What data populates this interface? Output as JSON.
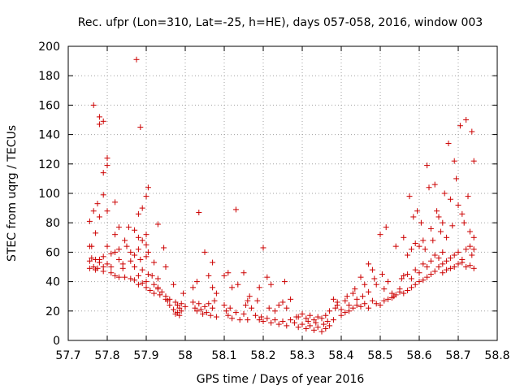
{
  "chart_data": {
    "type": "scatter",
    "title": "Rec. ufpr (Lon=310, Lat=-25, h=HE), days 057-058, 2016, window 003",
    "xlabel": "GPS time / Days of year 2016",
    "ylabel": "STEC from uqrg / TECUs",
    "xlim": [
      57.7,
      58.8
    ],
    "ylim": [
      0,
      200
    ],
    "xticks": [
      "57.7",
      "57.8",
      "57.9",
      "58",
      "58.1",
      "58.2",
      "58.3",
      "58.4",
      "58.5",
      "58.6",
      "58.7",
      "58.8"
    ],
    "xtick_values": [
      57.7,
      57.8,
      57.9,
      58.0,
      58.1,
      58.2,
      58.3,
      58.4,
      58.5,
      58.6,
      58.7,
      58.8
    ],
    "yticks": [
      "0",
      "20",
      "40",
      "60",
      "80",
      "100",
      "120",
      "140",
      "160",
      "180",
      "200"
    ],
    "ytick_values": [
      0,
      20,
      40,
      60,
      80,
      100,
      120,
      140,
      160,
      180,
      200
    ],
    "grid": true,
    "marker": "+",
    "color": "#cc0000",
    "points": [
      [
        57.875,
        191
      ],
      [
        57.765,
        160
      ],
      [
        57.78,
        152
      ],
      [
        57.78,
        147
      ],
      [
        57.79,
        149
      ],
      [
        57.885,
        145
      ],
      [
        57.8,
        124
      ],
      [
        57.8,
        119
      ],
      [
        57.79,
        114
      ],
      [
        57.905,
        104
      ],
      [
        57.79,
        99
      ],
      [
        57.775,
        93
      ],
      [
        57.82,
        94
      ],
      [
        57.755,
        81
      ],
      [
        57.765,
        88
      ],
      [
        57.78,
        84
      ],
      [
        57.8,
        88
      ],
      [
        57.9,
        98
      ],
      [
        57.89,
        90
      ],
      [
        57.88,
        86
      ],
      [
        57.83,
        77
      ],
      [
        57.855,
        77
      ],
      [
        57.87,
        75
      ],
      [
        57.93,
        79
      ],
      [
        57.77,
        73
      ],
      [
        57.82,
        72
      ],
      [
        57.845,
        68
      ],
      [
        57.88,
        70
      ],
      [
        57.89,
        68
      ],
      [
        57.9,
        72
      ],
      [
        57.755,
        64
      ],
      [
        57.76,
        64
      ],
      [
        57.8,
        64
      ],
      [
        57.82,
        60
      ],
      [
        57.83,
        62
      ],
      [
        57.85,
        64
      ],
      [
        57.86,
        60
      ],
      [
        57.87,
        58
      ],
      [
        57.88,
        62
      ],
      [
        57.9,
        65
      ],
      [
        57.905,
        60
      ],
      [
        57.945,
        63
      ],
      [
        57.76,
        56
      ],
      [
        57.77,
        55
      ],
      [
        57.78,
        55
      ],
      [
        57.79,
        57
      ],
      [
        57.81,
        59
      ],
      [
        57.83,
        55
      ],
      [
        57.84,
        52
      ],
      [
        57.86,
        54
      ],
      [
        57.885,
        55
      ],
      [
        57.9,
        57
      ],
      [
        57.92,
        53
      ],
      [
        57.755,
        54
      ],
      [
        57.765,
        50
      ],
      [
        57.775,
        49
      ],
      [
        57.78,
        53
      ],
      [
        57.79,
        50
      ],
      [
        57.8,
        52
      ],
      [
        57.81,
        50
      ],
      [
        57.84,
        49
      ],
      [
        57.87,
        50
      ],
      [
        57.89,
        48
      ],
      [
        57.905,
        45
      ],
      [
        57.95,
        50
      ],
      [
        57.755,
        49
      ],
      [
        57.77,
        48
      ],
      [
        57.79,
        47
      ],
      [
        57.81,
        46
      ],
      [
        57.82,
        44
      ],
      [
        57.83,
        43
      ],
      [
        57.845,
        43
      ],
      [
        57.86,
        42
      ],
      [
        57.87,
        41
      ],
      [
        57.88,
        44
      ],
      [
        57.89,
        39
      ],
      [
        57.9,
        40
      ],
      [
        57.915,
        44
      ],
      [
        57.93,
        42
      ],
      [
        57.88,
        38
      ],
      [
        57.9,
        36
      ],
      [
        57.91,
        34
      ],
      [
        57.92,
        38
      ],
      [
        57.93,
        35
      ],
      [
        57.935,
        31
      ],
      [
        57.94,
        33
      ],
      [
        57.95,
        30
      ],
      [
        57.955,
        27
      ],
      [
        57.96,
        28
      ],
      [
        57.97,
        38
      ],
      [
        57.975,
        26
      ],
      [
        57.98,
        24
      ],
      [
        57.985,
        22
      ],
      [
        57.99,
        25
      ],
      [
        57.995,
        32
      ],
      [
        57.92,
        32
      ],
      [
        57.93,
        36
      ],
      [
        57.95,
        28
      ],
      [
        57.96,
        24
      ],
      [
        57.97,
        21
      ],
      [
        57.975,
        18
      ],
      [
        57.98,
        19
      ],
      [
        57.985,
        17
      ],
      [
        57.99,
        20
      ],
      [
        58.0,
        23
      ],
      [
        58.02,
        36
      ],
      [
        58.03,
        40
      ],
      [
        58.035,
        87
      ],
      [
        58.05,
        60
      ],
      [
        58.06,
        44
      ],
      [
        58.07,
        53
      ],
      [
        58.07,
        36
      ],
      [
        58.08,
        32
      ],
      [
        58.02,
        26
      ],
      [
        58.025,
        22
      ],
      [
        58.03,
        20
      ],
      [
        58.035,
        25
      ],
      [
        58.04,
        21
      ],
      [
        58.045,
        18
      ],
      [
        58.05,
        23
      ],
      [
        58.055,
        19
      ],
      [
        58.06,
        25
      ],
      [
        58.065,
        17
      ],
      [
        58.07,
        22
      ],
      [
        58.075,
        27
      ],
      [
        58.08,
        16
      ],
      [
        58.1,
        44
      ],
      [
        58.11,
        46
      ],
      [
        58.12,
        36
      ],
      [
        58.13,
        89
      ],
      [
        58.135,
        38
      ],
      [
        58.15,
        46
      ],
      [
        58.16,
        27
      ],
      [
        58.165,
        30
      ],
      [
        58.1,
        24
      ],
      [
        58.105,
        20
      ],
      [
        58.11,
        17
      ],
      [
        58.115,
        22
      ],
      [
        58.12,
        15
      ],
      [
        58.13,
        19
      ],
      [
        58.14,
        14
      ],
      [
        58.15,
        18
      ],
      [
        58.155,
        24
      ],
      [
        58.16,
        14
      ],
      [
        58.17,
        22
      ],
      [
        58.18,
        17
      ],
      [
        58.185,
        27
      ],
      [
        58.19,
        36
      ],
      [
        58.2,
        63
      ],
      [
        58.21,
        43
      ],
      [
        58.22,
        38
      ],
      [
        58.255,
        40
      ],
      [
        58.25,
        26
      ],
      [
        58.26,
        22
      ],
      [
        58.27,
        28
      ],
      [
        58.24,
        24
      ],
      [
        58.23,
        20
      ],
      [
        58.215,
        22
      ],
      [
        58.19,
        14
      ],
      [
        58.195,
        16
      ],
      [
        58.2,
        13
      ],
      [
        58.21,
        15
      ],
      [
        58.22,
        12
      ],
      [
        58.23,
        14
      ],
      [
        58.24,
        11
      ],
      [
        58.25,
        13
      ],
      [
        58.26,
        10
      ],
      [
        58.27,
        14
      ],
      [
        58.28,
        12
      ],
      [
        58.285,
        16
      ],
      [
        58.29,
        9
      ],
      [
        58.3,
        11
      ],
      [
        58.31,
        8
      ],
      [
        58.315,
        13
      ],
      [
        58.32,
        10
      ],
      [
        58.33,
        7
      ],
      [
        58.335,
        12
      ],
      [
        58.34,
        9
      ],
      [
        58.35,
        6
      ],
      [
        58.355,
        11
      ],
      [
        58.36,
        8
      ],
      [
        58.365,
        13
      ],
      [
        58.37,
        10
      ],
      [
        58.29,
        16
      ],
      [
        58.3,
        18
      ],
      [
        58.31,
        15
      ],
      [
        58.32,
        17
      ],
      [
        58.33,
        14
      ],
      [
        58.34,
        16
      ],
      [
        58.35,
        15
      ],
      [
        58.36,
        17
      ],
      [
        58.37,
        20
      ],
      [
        58.38,
        14
      ],
      [
        58.385,
        22
      ],
      [
        58.39,
        26
      ],
      [
        58.38,
        28
      ],
      [
        58.39,
        24
      ],
      [
        58.4,
        21
      ],
      [
        58.41,
        27
      ],
      [
        58.415,
        30
      ],
      [
        58.42,
        24
      ],
      [
        58.43,
        32
      ],
      [
        58.435,
        35
      ],
      [
        58.44,
        28
      ],
      [
        58.45,
        43
      ],
      [
        58.455,
        30
      ],
      [
        58.46,
        38
      ],
      [
        58.47,
        33
      ],
      [
        58.4,
        17
      ],
      [
        58.41,
        19
      ],
      [
        58.42,
        20
      ],
      [
        58.43,
        22
      ],
      [
        58.44,
        24
      ],
      [
        58.45,
        23
      ],
      [
        58.46,
        25
      ],
      [
        58.47,
        22
      ],
      [
        58.48,
        27
      ],
      [
        58.49,
        25
      ],
      [
        58.5,
        24
      ],
      [
        58.51,
        27
      ],
      [
        58.47,
        52
      ],
      [
        58.48,
        48
      ],
      [
        58.485,
        42
      ],
      [
        58.49,
        38
      ],
      [
        58.5,
        72
      ],
      [
        58.505,
        45
      ],
      [
        58.51,
        35
      ],
      [
        58.515,
        77
      ],
      [
        58.52,
        40
      ],
      [
        58.53,
        32
      ],
      [
        58.535,
        30
      ],
      [
        58.54,
        64
      ],
      [
        58.55,
        35
      ],
      [
        58.555,
        42
      ],
      [
        58.56,
        70
      ],
      [
        58.52,
        28
      ],
      [
        58.53,
        29
      ],
      [
        58.54,
        31
      ],
      [
        58.55,
        33
      ],
      [
        58.56,
        32
      ],
      [
        58.57,
        34
      ],
      [
        58.58,
        36
      ],
      [
        58.59,
        38
      ],
      [
        58.6,
        40
      ],
      [
        58.61,
        41
      ],
      [
        58.62,
        43
      ],
      [
        58.63,
        45
      ],
      [
        58.64,
        47
      ],
      [
        58.57,
        58
      ],
      [
        58.575,
        98
      ],
      [
        58.58,
        62
      ],
      [
        58.585,
        84
      ],
      [
        58.59,
        66
      ],
      [
        58.595,
        88
      ],
      [
        58.6,
        64
      ],
      [
        58.605,
        80
      ],
      [
        58.61,
        68
      ],
      [
        58.615,
        62
      ],
      [
        58.62,
        119
      ],
      [
        58.625,
        104
      ],
      [
        58.63,
        76
      ],
      [
        58.635,
        68
      ],
      [
        58.64,
        106
      ],
      [
        58.56,
        44
      ],
      [
        58.57,
        45
      ],
      [
        58.58,
        42
      ],
      [
        58.59,
        48
      ],
      [
        58.6,
        46
      ],
      [
        58.61,
        52
      ],
      [
        58.62,
        50
      ],
      [
        58.63,
        54
      ],
      [
        58.64,
        58
      ],
      [
        58.65,
        56
      ],
      [
        58.66,
        60
      ],
      [
        58.645,
        88
      ],
      [
        58.65,
        84
      ],
      [
        58.655,
        74
      ],
      [
        58.66,
        80
      ],
      [
        58.665,
        100
      ],
      [
        58.67,
        70
      ],
      [
        58.675,
        134
      ],
      [
        58.68,
        96
      ],
      [
        58.685,
        78
      ],
      [
        58.69,
        122
      ],
      [
        58.695,
        110
      ],
      [
        58.7,
        92
      ],
      [
        58.705,
        146
      ],
      [
        58.71,
        86
      ],
      [
        58.715,
        80
      ],
      [
        58.72,
        150
      ],
      [
        58.725,
        98
      ],
      [
        58.73,
        74
      ],
      [
        58.735,
        142
      ],
      [
        58.74,
        122
      ],
      [
        58.65,
        50
      ],
      [
        58.66,
        52
      ],
      [
        58.67,
        54
      ],
      [
        58.68,
        56
      ],
      [
        58.69,
        58
      ],
      [
        58.7,
        60
      ],
      [
        58.71,
        55
      ],
      [
        58.72,
        62
      ],
      [
        58.73,
        64
      ],
      [
        58.74,
        70
      ],
      [
        58.66,
        46
      ],
      [
        58.67,
        48
      ],
      [
        58.68,
        49
      ],
      [
        58.69,
        50
      ],
      [
        58.7,
        52
      ],
      [
        58.71,
        53
      ],
      [
        58.72,
        50
      ],
      [
        58.73,
        51
      ],
      [
        58.74,
        49
      ],
      [
        58.735,
        58
      ],
      [
        58.74,
        62
      ]
    ]
  }
}
